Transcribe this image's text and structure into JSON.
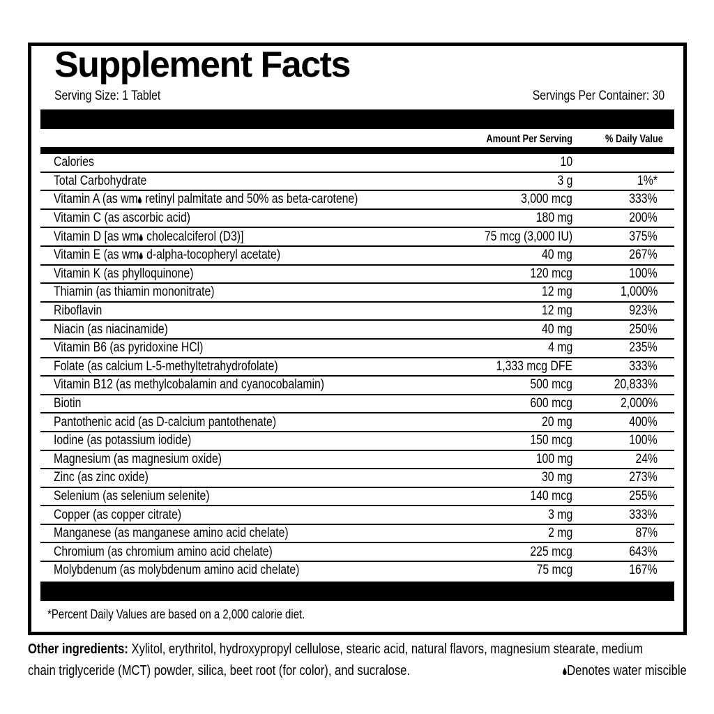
{
  "colors": {
    "ink": "#000000",
    "paper": "#ffffff"
  },
  "panel": {
    "title": "Supplement Facts",
    "serving_size": "Serving Size: 1 Tablet",
    "servings_per_container": "Servings Per Container: 30",
    "footnote": "*Percent Daily Values are based on a 2,000 calorie diet."
  },
  "table": {
    "amount_header": "Amount Per Serving",
    "dv_header": "% Daily Value",
    "rows": [
      {
        "label": "Calories",
        "amount": "10",
        "dv": ""
      },
      {
        "label": "Total Carbohydrate",
        "amount": "3 g",
        "dv": "1%*"
      },
      {
        "label": "Vitamin A (as wm{drop} retinyl palmitate and 50% as beta-carotene)",
        "amount": "3,000 mcg",
        "dv": "333%"
      },
      {
        "label": "Vitamin C (as ascorbic acid)",
        "amount": "180 mg",
        "dv": "200%"
      },
      {
        "label": "Vitamin D [as wm{drop} cholecalciferol (D3)]",
        "amount": "75 mcg (3,000 IU)",
        "dv": "375%"
      },
      {
        "label": "Vitamin E (as wm{drop} d-alpha-tocopheryl acetate)",
        "amount": "40 mg",
        "dv": "267%"
      },
      {
        "label": "Vitamin K (as phylloquinone)",
        "amount": "120 mcg",
        "dv": "100%"
      },
      {
        "label": "Thiamin (as thiamin mononitrate)",
        "amount": "12 mg",
        "dv": "1,000%"
      },
      {
        "label": "Riboflavin",
        "amount": "12 mg",
        "dv": "923%"
      },
      {
        "label": "Niacin (as niacinamide)",
        "amount": "40 mg",
        "dv": "250%"
      },
      {
        "label": "Vitamin B6 (as pyridoxine HCl)",
        "amount": "4 mg",
        "dv": "235%"
      },
      {
        "label": "Folate (as calcium L-5-methyltetrahydrofolate)",
        "amount": "1,333 mcg DFE",
        "dv": "333%"
      },
      {
        "label": "Vitamin B12 (as methylcobalamin and cyanocobalamin)",
        "amount": "500 mcg",
        "dv": "20,833%"
      },
      {
        "label": "Biotin",
        "amount": "600 mcg",
        "dv": "2,000%"
      },
      {
        "label": "Pantothenic acid (as D-calcium pantothenate)",
        "amount": "20 mg",
        "dv": "400%"
      },
      {
        "label": "Iodine (as potassium iodide)",
        "amount": "150 mcg",
        "dv": "100%"
      },
      {
        "label": "Magnesium (as magnesium oxide)",
        "amount": "100 mg",
        "dv": "24%"
      },
      {
        "label": "Zinc (as zinc oxide)",
        "amount": "30 mg",
        "dv": "273%"
      },
      {
        "label": "Selenium (as selenium selenite)",
        "amount": "140 mcg",
        "dv": "255%"
      },
      {
        "label": "Copper (as copper citrate)",
        "amount": "3 mg",
        "dv": "333%"
      },
      {
        "label": "Manganese (as manganese amino acid chelate)",
        "amount": "2 mg",
        "dv": "87%"
      },
      {
        "label": "Chromium (as chromium amino acid chelate)",
        "amount": "225 mcg",
        "dv": "643%"
      },
      {
        "label": "Molybdenum (as molybdenum amino acid chelate)",
        "amount": "75 mcg",
        "dv": "167%"
      }
    ]
  },
  "other_ingredients": {
    "label": "Other ingredients:",
    "line1_rest": " Xylitol, erythritol, hydroxypropyl cellulose, stearic acid, natural flavors, magnesium stearate, medium",
    "line2": "chain triglyceride (MCT) powder, silica, beet root (for color), and sucralose.",
    "water_miscible_note": "{drop}Denotes water miscible"
  }
}
